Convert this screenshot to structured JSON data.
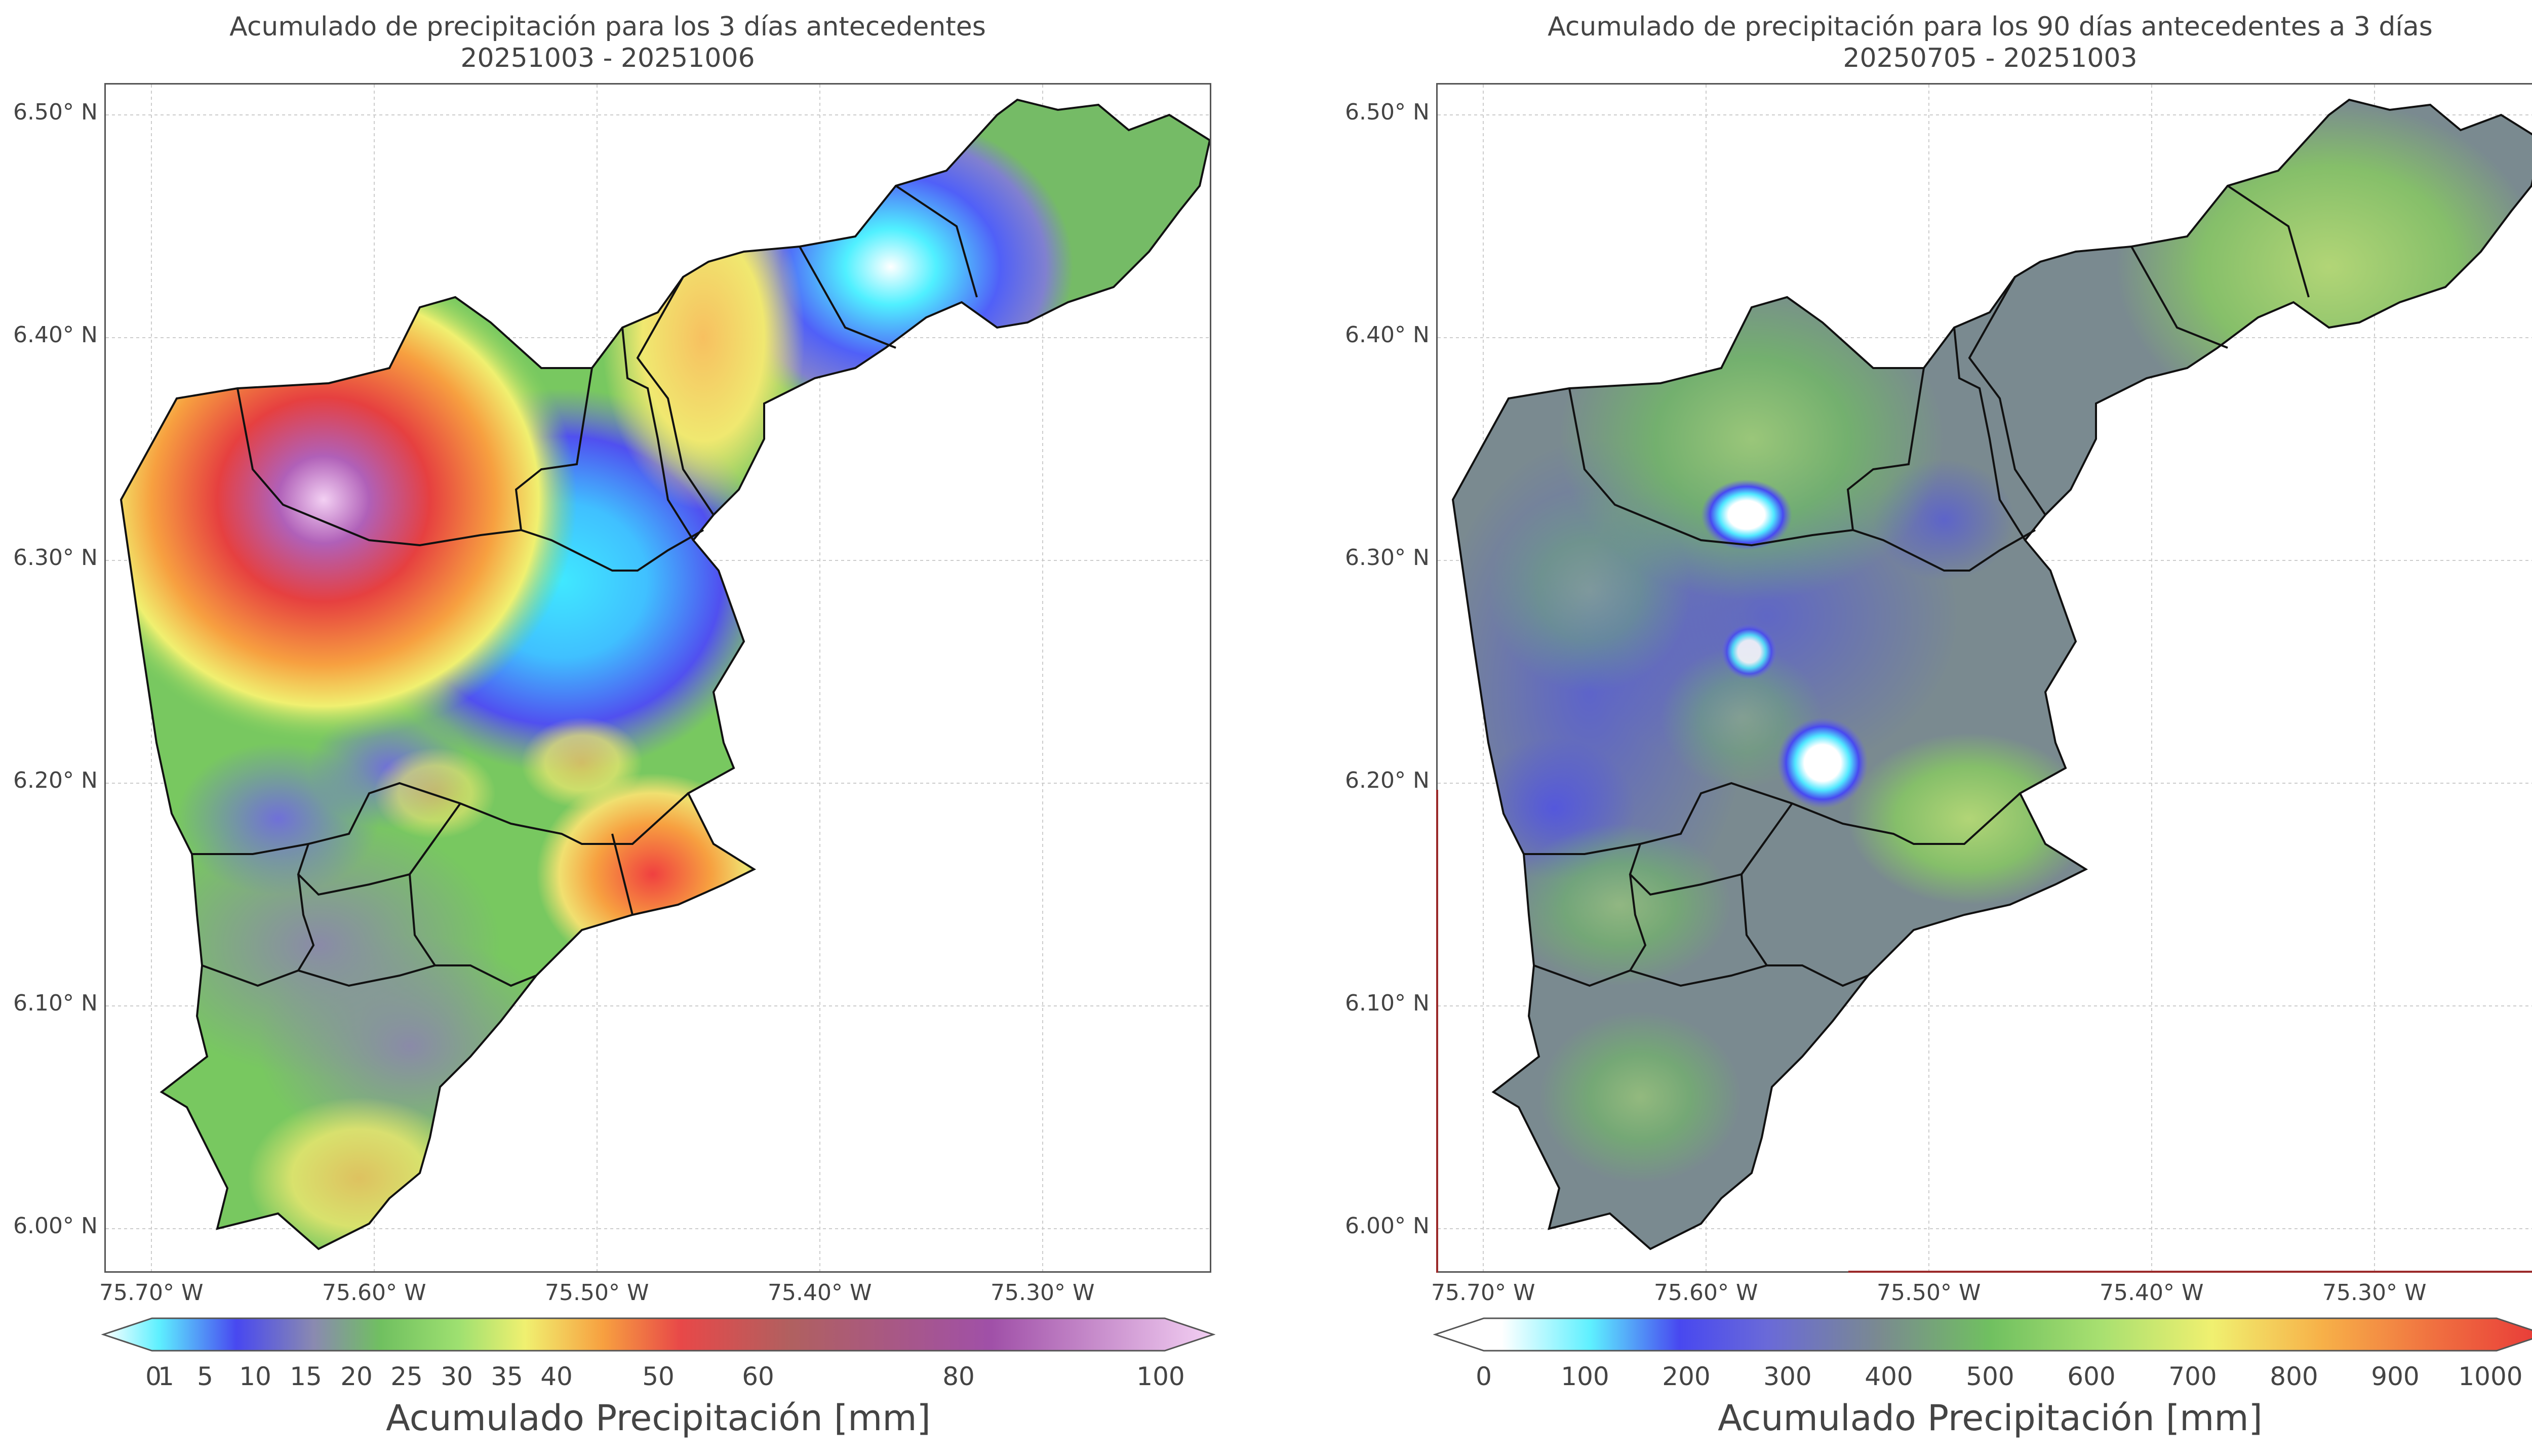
{
  "colors": {
    "frame": "#555555",
    "grid": "#cccccc",
    "boundary": "#111111",
    "border_red": "#9b2a2a"
  },
  "left_panel": {
    "title_line1": "Acumulado de precipitación para los 3 días antecedentes",
    "title_line2": "20251003 - 20251006",
    "lat_labels": [
      "6.50° N",
      "6.40° N",
      "6.30° N",
      "6.20° N",
      "6.10° N",
      "6.00° N"
    ],
    "lon_labels": [
      "75.70° W",
      "75.60° W",
      "75.50° W",
      "75.40° W",
      "75.30° W"
    ],
    "colorbar": {
      "labels": [
        "0",
        "1",
        "5",
        "10",
        "15",
        "20",
        "25",
        "30",
        "35",
        "40",
        "50",
        "60",
        "80",
        "100"
      ],
      "title": "Acumulado Precipitación [mm]"
    }
  },
  "right_panel": {
    "title_line1": "Acumulado de precipitación para los 90 días antecedentes a 3 días",
    "title_line2": "20250705 - 20251003",
    "lat_labels": [
      "6.50° N",
      "6.40° N",
      "6.30° N",
      "6.20° N",
      "6.10° N",
      "6.00° N"
    ],
    "lon_labels": [
      "75.70° W",
      "75.60° W",
      "75.50° W",
      "75.40° W",
      "75.30° W"
    ],
    "colorbar": {
      "labels": [
        "0",
        "100",
        "200",
        "300",
        "400",
        "500",
        "600",
        "700",
        "800",
        "900",
        "1000"
      ],
      "title": "Acumulado Precipitación [mm]"
    }
  }
}
